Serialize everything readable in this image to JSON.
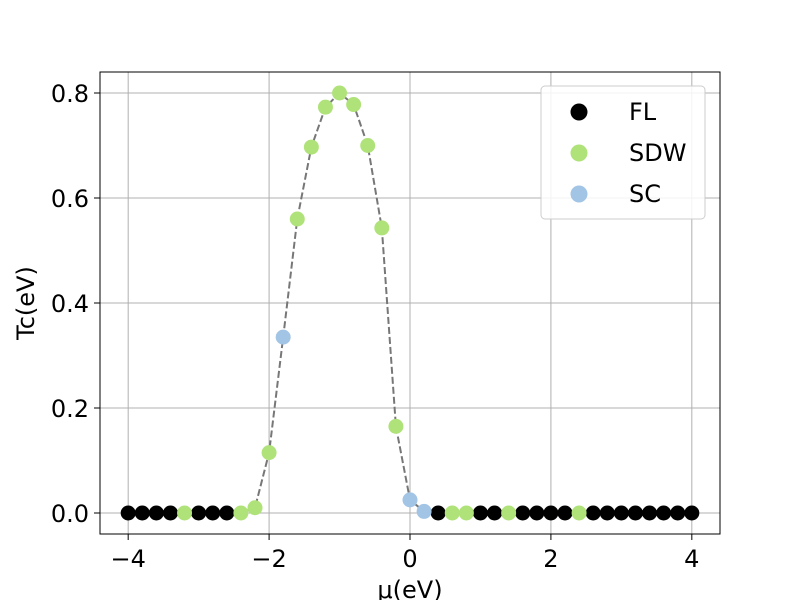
{
  "chart_data": {
    "type": "scatter",
    "xlabel": "μ(eV)",
    "ylabel": "Tc(eV)",
    "xlim": [
      -4.4,
      4.4
    ],
    "ylim": [
      -0.04,
      0.84
    ],
    "xticks": [
      -4,
      -2,
      0,
      2,
      4
    ],
    "xtick_labels": [
      "−4",
      "−2",
      "0",
      "2",
      "4"
    ],
    "yticks": [
      0.0,
      0.2,
      0.4,
      0.6,
      0.8
    ],
    "ytick_labels": [
      "0.0",
      "0.2",
      "0.4",
      "0.6",
      "0.8"
    ],
    "grid": true,
    "legend_position": "top-right",
    "series": [
      {
        "name": "FL",
        "color": "#000000",
        "points": [
          [
            -4.0,
            0
          ],
          [
            -3.8,
            0
          ],
          [
            -3.6,
            0
          ],
          [
            -3.4,
            0
          ],
          [
            -3.0,
            0
          ],
          [
            -2.8,
            0
          ],
          [
            -2.6,
            0
          ],
          [
            0.4,
            0
          ],
          [
            1.0,
            0
          ],
          [
            1.2,
            0
          ],
          [
            1.6,
            0
          ],
          [
            1.8,
            0
          ],
          [
            2.0,
            0
          ],
          [
            2.2,
            0
          ],
          [
            2.6,
            0
          ],
          [
            2.8,
            0
          ],
          [
            3.0,
            0
          ],
          [
            3.2,
            0
          ],
          [
            3.4,
            0
          ],
          [
            3.6,
            0
          ],
          [
            3.8,
            0
          ],
          [
            4.0,
            0
          ]
        ]
      },
      {
        "name": "SDW",
        "color": "#b0e27a",
        "points": [
          [
            -3.2,
            0
          ],
          [
            -2.4,
            0
          ],
          [
            -2.2,
            0.01
          ],
          [
            -2.0,
            0.115
          ],
          [
            -1.6,
            0.56
          ],
          [
            -1.4,
            0.697
          ],
          [
            -1.2,
            0.773
          ],
          [
            -1.0,
            0.8
          ],
          [
            -0.8,
            0.778
          ],
          [
            -0.6,
            0.7
          ],
          [
            -0.4,
            0.543
          ],
          [
            -0.2,
            0.165
          ],
          [
            0.6,
            0
          ],
          [
            0.8,
            0
          ],
          [
            1.4,
            0
          ],
          [
            2.4,
            0
          ]
        ]
      },
      {
        "name": "SC",
        "color": "#a2c4e5",
        "points": [
          [
            -1.8,
            0.335
          ],
          [
            0.0,
            0.025
          ],
          [
            0.2,
            0.003
          ]
        ]
      }
    ],
    "trend_line": {
      "style": "dashed",
      "color": "#777777",
      "points": [
        [
          -4.0,
          0
        ],
        [
          -3.8,
          0
        ],
        [
          -3.6,
          0
        ],
        [
          -3.4,
          0
        ],
        [
          -3.2,
          0
        ],
        [
          -3.0,
          0
        ],
        [
          -2.8,
          0
        ],
        [
          -2.6,
          0
        ],
        [
          -2.4,
          0
        ],
        [
          -2.2,
          0.01
        ],
        [
          -2.0,
          0.115
        ],
        [
          -1.8,
          0.335
        ],
        [
          -1.6,
          0.56
        ],
        [
          -1.4,
          0.697
        ],
        [
          -1.2,
          0.773
        ],
        [
          -1.0,
          0.8
        ],
        [
          -0.8,
          0.778
        ],
        [
          -0.6,
          0.7
        ],
        [
          -0.4,
          0.543
        ],
        [
          -0.2,
          0.165
        ],
        [
          0.0,
          0.025
        ],
        [
          0.2,
          0.003
        ],
        [
          0.4,
          0
        ],
        [
          0.6,
          0
        ],
        [
          0.8,
          0
        ],
        [
          1.0,
          0
        ],
        [
          1.2,
          0
        ],
        [
          1.4,
          0
        ],
        [
          1.6,
          0
        ],
        [
          1.8,
          0
        ],
        [
          2.0,
          0
        ],
        [
          2.2,
          0
        ],
        [
          2.4,
          0
        ],
        [
          2.6,
          0
        ],
        [
          2.8,
          0
        ],
        [
          3.0,
          0
        ],
        [
          3.2,
          0
        ],
        [
          3.4,
          0
        ],
        [
          3.6,
          0
        ],
        [
          3.8,
          0
        ],
        [
          4.0,
          0
        ]
      ]
    }
  }
}
